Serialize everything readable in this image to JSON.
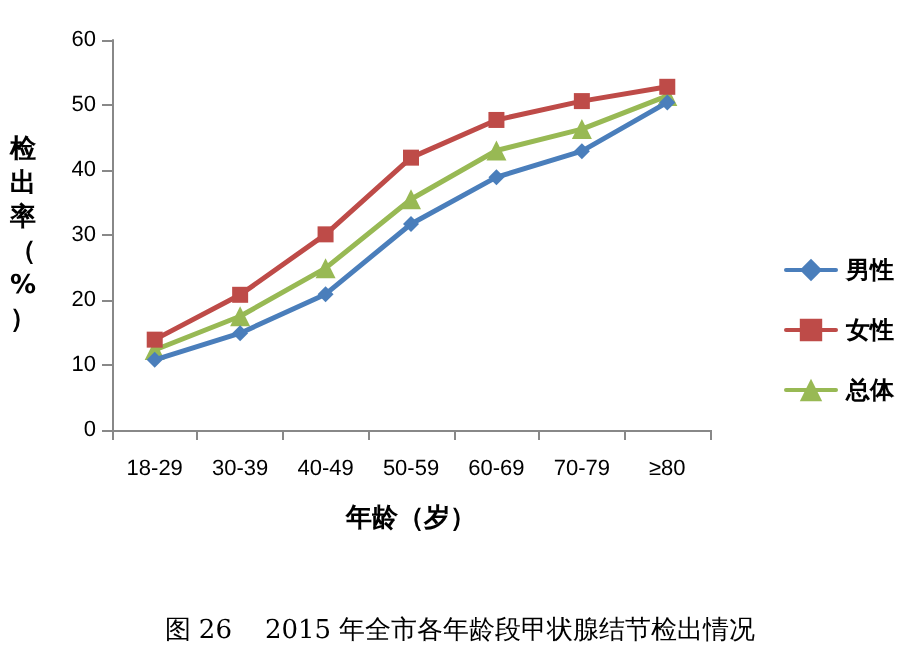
{
  "chart_data": {
    "type": "line",
    "xlabel": "年龄（岁）",
    "ylabel": "检出率（%）",
    "categories": [
      "18-29",
      "30-39",
      "40-49",
      "50-59",
      "60-69",
      "70-79",
      "≥80"
    ],
    "series": [
      {
        "name": "男性",
        "color": "#4a7ebb",
        "marker": "diamond",
        "values": [
          10.8,
          14.9,
          20.9,
          31.7,
          38.9,
          42.9,
          50.4
        ]
      },
      {
        "name": "女性",
        "color": "#be4b48",
        "marker": "square",
        "values": [
          13.9,
          20.8,
          30.1,
          41.9,
          47.7,
          50.6,
          52.8
        ]
      },
      {
        "name": "总体",
        "color": "#98b954",
        "marker": "triangle",
        "values": [
          12.3,
          17.5,
          24.9,
          35.5,
          43.0,
          46.3,
          51.4
        ]
      }
    ],
    "ylim": [
      0,
      60
    ],
    "yticks": [
      0,
      10,
      20,
      30,
      40,
      50,
      60
    ],
    "grid": false,
    "legend": "right",
    "line_style": "solid",
    "annotations": [
      "图 26    2015 年全市各年龄段甲状腺结节检出情况"
    ]
  }
}
